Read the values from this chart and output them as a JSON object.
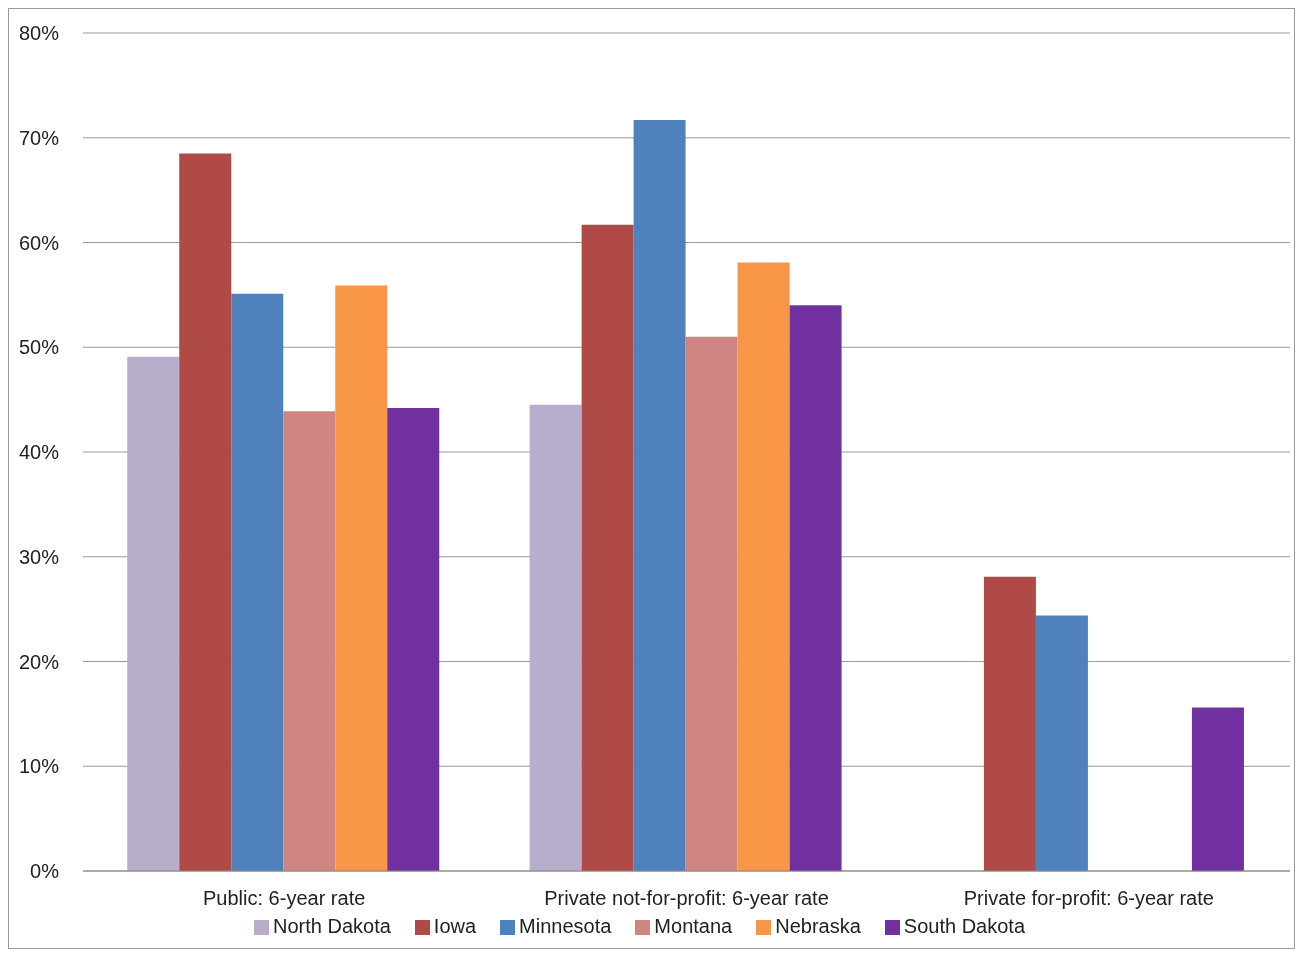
{
  "chart_data": {
    "type": "bar",
    "categories": [
      "Public:  6-year rate",
      "Private not-for-profit:  6-year rate",
      "Private for-profit:  6-year rate"
    ],
    "series": [
      {
        "name": "North Dakota",
        "color": "#b8aecb",
        "values": [
          49.1,
          44.5,
          null
        ]
      },
      {
        "name": "Iowa",
        "color": "#b04a47",
        "values": [
          68.5,
          61.7,
          28.1
        ]
      },
      {
        "name": "Minnesota",
        "color": "#4f81bd",
        "values": [
          55.1,
          71.7,
          24.4
        ]
      },
      {
        "name": "Montana",
        "color": "#cf8682",
        "values": [
          43.9,
          51.0,
          null
        ]
      },
      {
        "name": "Nebraska",
        "color": "#f79646",
        "values": [
          55.9,
          58.1,
          null
        ]
      },
      {
        "name": "South Dakota",
        "color": "#7030a0",
        "values": [
          44.2,
          54.0,
          15.6
        ]
      }
    ],
    "ylim": [
      0,
      80
    ],
    "yticks": [
      {
        "value": 0,
        "label": "0%"
      },
      {
        "value": 10,
        "label": "10%"
      },
      {
        "value": 20,
        "label": "20%"
      },
      {
        "value": 30,
        "label": "30%"
      },
      {
        "value": 40,
        "label": "40%"
      },
      {
        "value": 50,
        "label": "50%"
      },
      {
        "value": 60,
        "label": "60%"
      },
      {
        "value": 70,
        "label": "70%"
      },
      {
        "value": 80,
        "label": "80%"
      }
    ],
    "grid": "y",
    "legend": "bottom"
  }
}
